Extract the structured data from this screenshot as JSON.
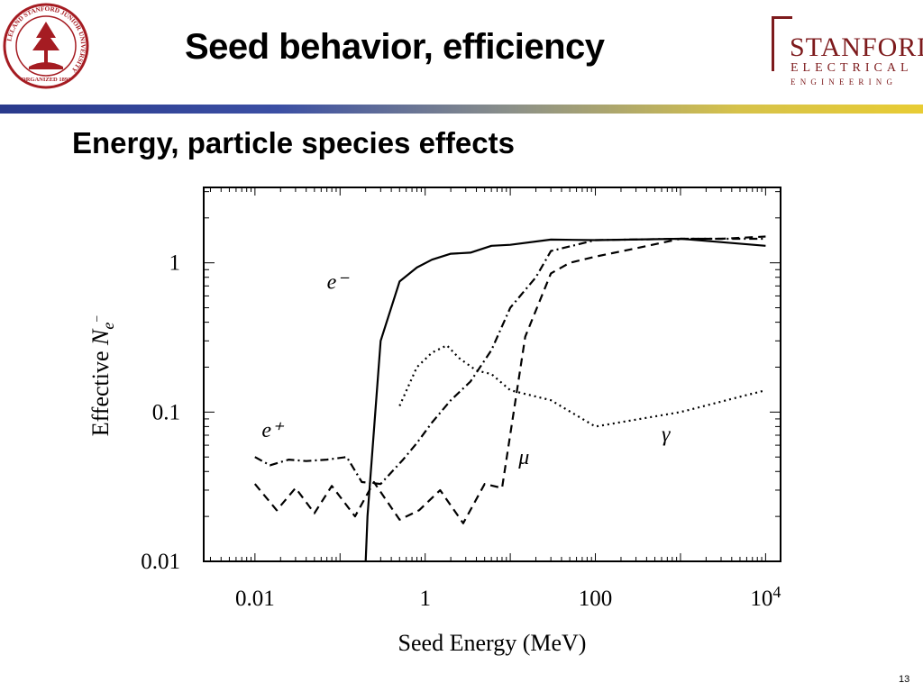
{
  "slide": {
    "title": "Seed behavior, efficiency",
    "subtitle": "Energy, particle species effects",
    "page_number": "13"
  },
  "seal": {
    "ring_text": "LELAND STANFORD JUNIOR UNIVERSITY",
    "bottom_text": "ORGANIZED 1891",
    "color": "#a51c22",
    "icon": "tree-icon"
  },
  "logo": {
    "line1": "STANFORD",
    "line2": "ELECTRICAL",
    "line3": "ENGINEERING",
    "color": "#7d1a1c"
  },
  "colors": {
    "rule_start": "#2a3a8c",
    "rule_end": "#e8cc34"
  },
  "chart_data": {
    "type": "line",
    "title": "",
    "xlabel": "Seed Energy (MeV)",
    "ylabel_prefix": "Effective ",
    "ylabel_var": "N",
    "ylabel_sub": "e",
    "ylabel_sup": "−",
    "xscale": "log",
    "yscale": "log",
    "xlim": [
      0.0025,
      15000
    ],
    "ylim": [
      0.01,
      3.2
    ],
    "grid": false,
    "xticks": [
      {
        "value": 0.01,
        "label": "0.01"
      },
      {
        "value": 1,
        "label": "1"
      },
      {
        "value": 100,
        "label": "100"
      },
      {
        "value": 10000,
        "label": "10",
        "sup": "4"
      }
    ],
    "yticks": [
      {
        "value": 0.01,
        "label": "0.01"
      },
      {
        "value": 0.1,
        "label": "0.1"
      },
      {
        "value": 1,
        "label": "1"
      }
    ],
    "series": [
      {
        "name": "e⁻",
        "style": "solid",
        "points": [
          [
            0.2,
            0.01
          ],
          [
            0.21,
            0.02
          ],
          [
            0.3,
            0.3
          ],
          [
            0.5,
            0.75
          ],
          [
            0.8,
            0.93
          ],
          [
            1.2,
            1.05
          ],
          [
            2,
            1.15
          ],
          [
            3.4,
            1.17
          ],
          [
            6,
            1.3
          ],
          [
            10,
            1.32
          ],
          [
            30,
            1.43
          ],
          [
            100,
            1.42
          ],
          [
            1000,
            1.45
          ],
          [
            10000,
            1.3
          ]
        ],
        "label_x": 0.07,
        "label_y": 0.67
      },
      {
        "name": "e⁺",
        "style": "dashdot",
        "points": [
          [
            0.01,
            0.05
          ],
          [
            0.015,
            0.044
          ],
          [
            0.025,
            0.048
          ],
          [
            0.04,
            0.047
          ],
          [
            0.07,
            0.048
          ],
          [
            0.12,
            0.05
          ],
          [
            0.18,
            0.034
          ],
          [
            0.3,
            0.033
          ],
          [
            0.55,
            0.048
          ],
          [
            0.8,
            0.062
          ],
          [
            1.2,
            0.085
          ],
          [
            2,
            0.12
          ],
          [
            3.4,
            0.16
          ],
          [
            6,
            0.26
          ],
          [
            10,
            0.5
          ],
          [
            20,
            0.8
          ],
          [
            30,
            1.2
          ],
          [
            100,
            1.42
          ],
          [
            1000,
            1.45
          ],
          [
            10000,
            1.45
          ]
        ],
        "label_x": 0.012,
        "label_y": 0.068
      },
      {
        "name": "μ",
        "style": "dashed",
        "points": [
          [
            0.01,
            0.033
          ],
          [
            0.018,
            0.022
          ],
          [
            0.03,
            0.031
          ],
          [
            0.05,
            0.021
          ],
          [
            0.08,
            0.032
          ],
          [
            0.15,
            0.02
          ],
          [
            0.25,
            0.034
          ],
          [
            0.5,
            0.019
          ],
          [
            0.85,
            0.022
          ],
          [
            1.5,
            0.03
          ],
          [
            2.8,
            0.018
          ],
          [
            5,
            0.033
          ],
          [
            8,
            0.031
          ],
          [
            15,
            0.32
          ],
          [
            30,
            0.85
          ],
          [
            50,
            1.0
          ],
          [
            100,
            1.1
          ],
          [
            300,
            1.25
          ],
          [
            1000,
            1.45
          ],
          [
            3000,
            1.45
          ],
          [
            10000,
            1.5
          ]
        ],
        "label_x": 12.5,
        "label_y": 0.045
      },
      {
        "name": "γ",
        "style": "dotted",
        "points": [
          [
            0.5,
            0.11
          ],
          [
            0.8,
            0.2
          ],
          [
            1.2,
            0.25
          ],
          [
            1.8,
            0.28
          ],
          [
            2.5,
            0.23
          ],
          [
            4,
            0.19
          ],
          [
            6,
            0.18
          ],
          [
            10,
            0.14
          ],
          [
            30,
            0.12
          ],
          [
            100,
            0.08
          ],
          [
            1000,
            0.1
          ],
          [
            10000,
            0.14
          ]
        ],
        "label_x": 600,
        "label_y": 0.064
      }
    ]
  }
}
